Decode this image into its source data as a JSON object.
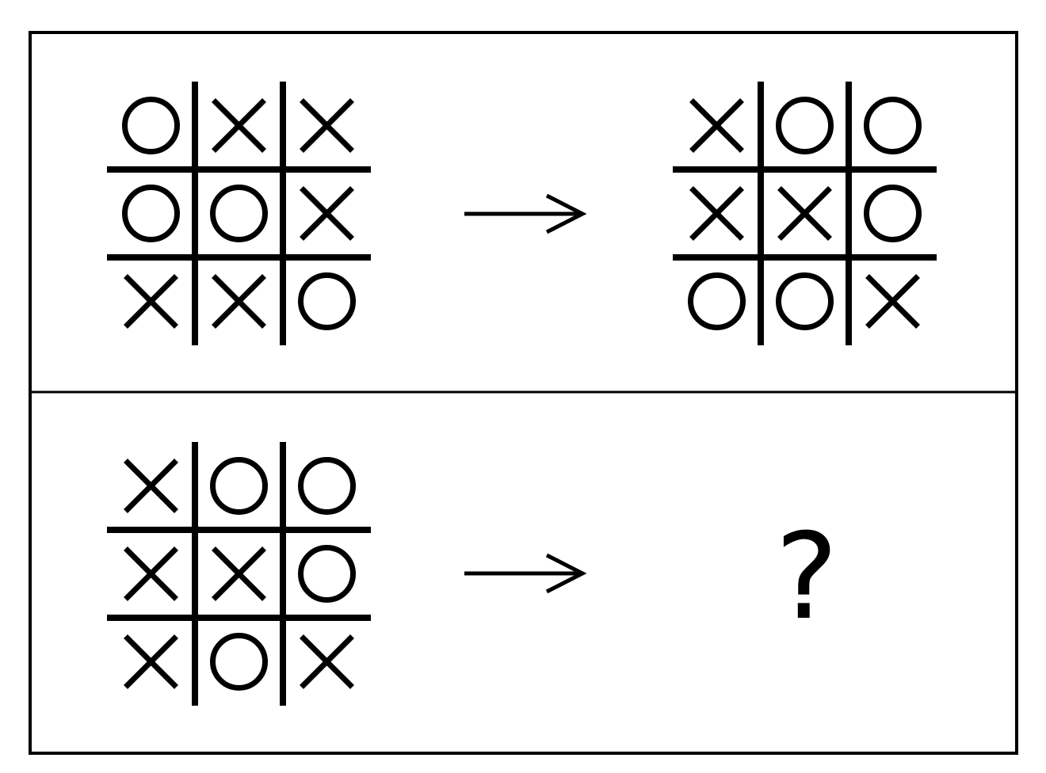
{
  "panels": [
    {
      "grids": [
        {
          "cells": [
            [
              "O",
              "X",
              "X"
            ],
            [
              "O",
              "O",
              "X"
            ],
            [
              "X",
              "X",
              "O"
            ]
          ]
        },
        {
          "cells": [
            [
              "X",
              "O",
              "O"
            ],
            [
              "X",
              "X",
              "O"
            ],
            [
              "O",
              "O",
              "X"
            ]
          ]
        }
      ],
      "result_text": ""
    },
    {
      "grids": [
        {
          "cells": [
            [
              "X",
              "O",
              "O"
            ],
            [
              "X",
              "X",
              "O"
            ],
            [
              "X",
              "O",
              "X"
            ]
          ]
        }
      ],
      "result_text": "?"
    }
  ],
  "colors": {
    "ink": "#000000",
    "background": "#ffffff"
  }
}
